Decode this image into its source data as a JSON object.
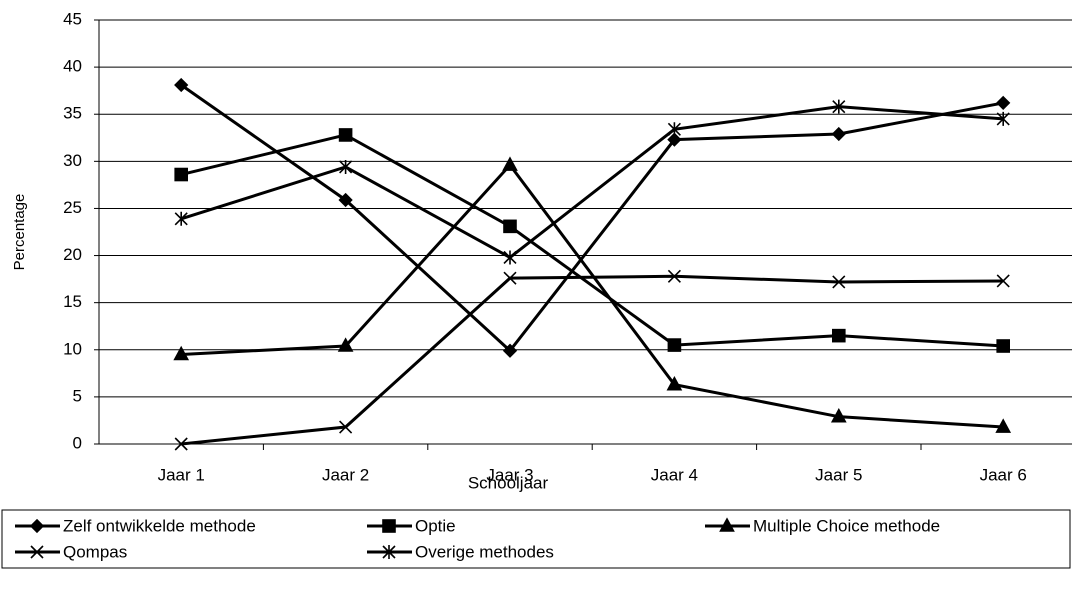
{
  "chart_data": {
    "type": "line",
    "x_label": "Schooljaar",
    "y_label": "Percentage",
    "categories": [
      "Jaar 1",
      "Jaar 2",
      "Jaar 3",
      "Jaar 4",
      "Jaar 5",
      "Jaar 6"
    ],
    "series": [
      {
        "name": "Zelf ontwikkelde methode",
        "color": "#000000",
        "marker": "diamond",
        "values": [
          38.1,
          25.9,
          9.9,
          32.3,
          32.9,
          36.2
        ]
      },
      {
        "name": "Optie",
        "color": "#000000",
        "marker": "square",
        "values": [
          28.6,
          32.8,
          23.1,
          10.5,
          11.5,
          10.4
        ]
      },
      {
        "name": "Multiple Choice methode",
        "color": "#000000",
        "marker": "triangle",
        "values": [
          9.5,
          10.4,
          29.6,
          6.3,
          2.9,
          1.8
        ]
      },
      {
        "name": "Qompas",
        "color": "#000000",
        "marker": "x",
        "values": [
          0,
          1.8,
          17.6,
          17.8,
          17.2,
          17.3
        ]
      },
      {
        "name": "Overige methodes",
        "color": "#000000",
        "marker": "star",
        "values": [
          23.9,
          29.4,
          19.8,
          33.4,
          35.8,
          34.5
        ]
      }
    ],
    "ylim": [
      0,
      45
    ],
    "yticks": [
      0,
      5,
      10,
      15,
      20,
      25,
      30,
      35,
      40,
      45
    ],
    "grid": true,
    "legend": "bottom"
  }
}
